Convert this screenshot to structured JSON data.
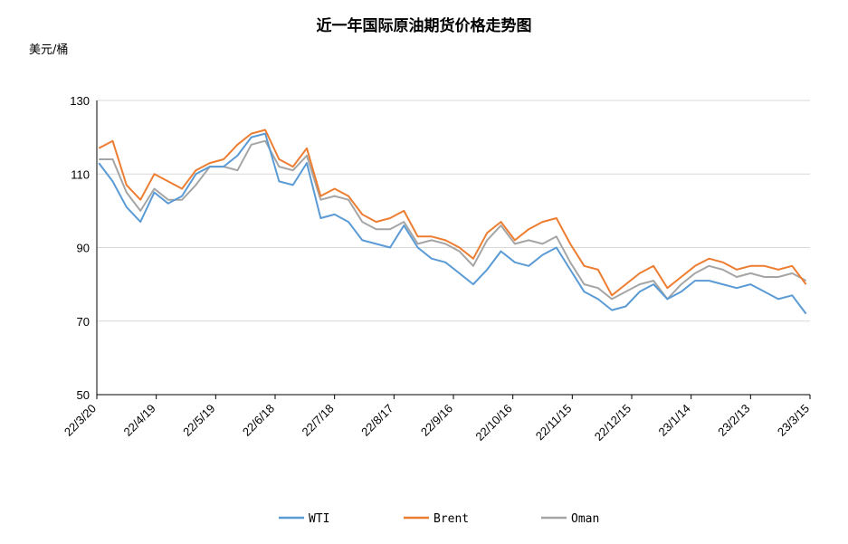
{
  "chart_data": {
    "type": "line",
    "title": "近一年国际原油期货价格走势图",
    "ylabel": "美元/桶",
    "xlabel": "",
    "ylim": [
      50,
      130
    ],
    "y_ticks": [
      "50",
      "70",
      "90",
      "110",
      "130"
    ],
    "x_ticks": [
      "22/3/20",
      "22/4/19",
      "22/5/19",
      "22/6/18",
      "22/7/18",
      "22/8/17",
      "22/9/16",
      "22/10/16",
      "22/11/15",
      "22/12/15",
      "23/1/14",
      "23/2/13",
      "23/3/15"
    ],
    "x_start": "2022-03-20",
    "x_end": "2023-03-15",
    "grid": "horizontal",
    "legend_position": "bottom",
    "colors": {
      "WTI": "#5b9bd5",
      "Brent": "#ed7d31",
      "Oman": "#a5a5a5"
    },
    "x": [
      "2022-03-21",
      "2022-03-28",
      "2022-04-04",
      "2022-04-11",
      "2022-04-18",
      "2022-04-25",
      "2022-05-02",
      "2022-05-09",
      "2022-05-16",
      "2022-05-23",
      "2022-05-30",
      "2022-06-06",
      "2022-06-13",
      "2022-06-20",
      "2022-06-27",
      "2022-07-04",
      "2022-07-11",
      "2022-07-18",
      "2022-07-25",
      "2022-08-01",
      "2022-08-08",
      "2022-08-15",
      "2022-08-22",
      "2022-08-29",
      "2022-09-05",
      "2022-09-12",
      "2022-09-19",
      "2022-09-26",
      "2022-10-03",
      "2022-10-10",
      "2022-10-17",
      "2022-10-24",
      "2022-10-31",
      "2022-11-07",
      "2022-11-14",
      "2022-11-21",
      "2022-11-28",
      "2022-12-05",
      "2022-12-12",
      "2022-12-19",
      "2022-12-26",
      "2023-01-02",
      "2023-01-09",
      "2023-01-16",
      "2023-01-23",
      "2023-01-30",
      "2023-02-06",
      "2023-02-13",
      "2023-02-20",
      "2023-02-27",
      "2023-03-06",
      "2023-03-13"
    ],
    "series": [
      {
        "name": "WTI",
        "values": [
          113,
          108,
          101,
          97,
          105,
          102,
          104,
          110,
          112,
          112,
          115,
          120,
          121,
          108,
          107,
          113,
          98,
          99,
          97,
          92,
          91,
          90,
          96,
          90,
          87,
          86,
          83,
          80,
          84,
          89,
          86,
          85,
          88,
          90,
          84,
          78,
          76,
          73,
          74,
          78,
          80,
          76,
          78,
          81,
          81,
          80,
          79,
          80,
          78,
          76,
          77,
          72
        ]
      },
      {
        "name": "Brent",
        "values": [
          117,
          119,
          107,
          103,
          110,
          108,
          106,
          111,
          113,
          114,
          118,
          121,
          122,
          114,
          112,
          117,
          104,
          106,
          104,
          99,
          97,
          98,
          100,
          93,
          93,
          92,
          90,
          87,
          94,
          97,
          92,
          95,
          97,
          98,
          91,
          85,
          84,
          77,
          80,
          83,
          85,
          79,
          82,
          85,
          87,
          86,
          84,
          85,
          85,
          84,
          85,
          80
        ]
      },
      {
        "name": "Oman",
        "values": [
          114,
          114,
          105,
          100,
          106,
          103,
          103,
          107,
          112,
          112,
          111,
          118,
          119,
          112,
          111,
          115,
          103,
          104,
          103,
          97,
          95,
          95,
          97,
          91,
          92,
          91,
          89,
          85,
          92,
          96,
          91,
          92,
          91,
          93,
          86,
          80,
          79,
          76,
          78,
          80,
          81,
          76,
          80,
          83,
          85,
          84,
          82,
          83,
          82,
          82,
          83,
          81
        ]
      }
    ]
  }
}
